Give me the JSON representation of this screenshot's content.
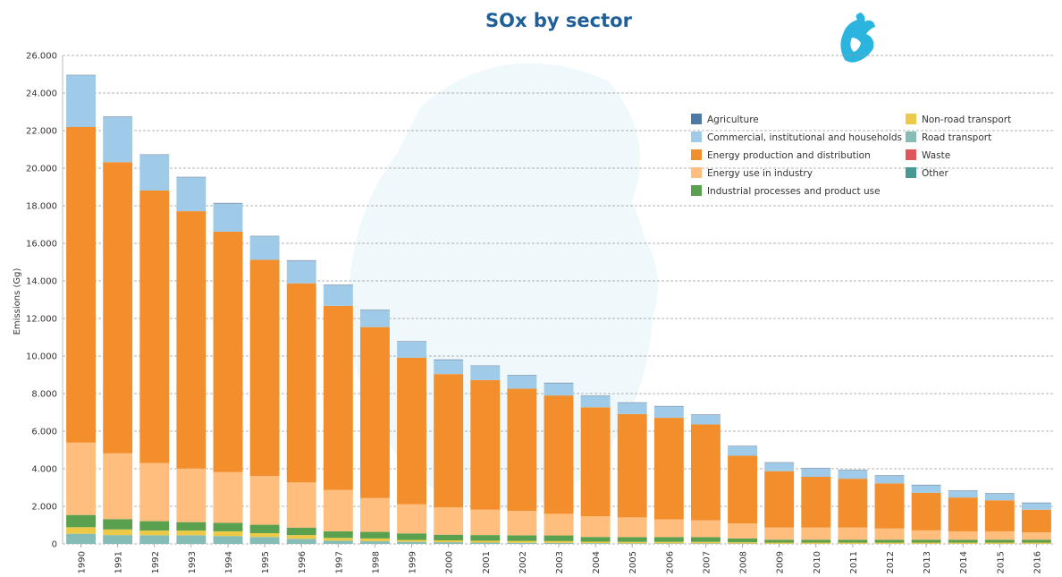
{
  "chart_data": {
    "type": "bar",
    "stacked": true,
    "title": "SOx by sector",
    "ylabel": "Emissions (Gg)",
    "xlabel": "",
    "ylim": [
      0,
      26000
    ],
    "yticks": [
      0,
      2000,
      4000,
      6000,
      8000,
      10000,
      12000,
      14000,
      16000,
      18000,
      20000,
      22000,
      24000,
      26000
    ],
    "ytick_labels": [
      "0",
      "2.000",
      "4.000",
      "6.000",
      "8.000",
      "10.000",
      "12.000",
      "14.000",
      "16.000",
      "18.000",
      "20.000",
      "22.000",
      "24.000",
      "26.000"
    ],
    "grid": "horizontal-dashed",
    "legend_position": "top-right",
    "categories": [
      "1990",
      "1991",
      "1992",
      "1993",
      "1994",
      "1995",
      "1996",
      "1997",
      "1998",
      "1999",
      "2000",
      "2001",
      "2002",
      "2003",
      "2004",
      "2005",
      "2006",
      "2007",
      "2008",
      "2009",
      "2010",
      "2011",
      "2012",
      "2013",
      "2014",
      "2015",
      "2016"
    ],
    "series": [
      {
        "name": "Agriculture",
        "color": "#4e79a7",
        "values": [
          20,
          20,
          20,
          20,
          20,
          20,
          20,
          20,
          20,
          20,
          20,
          20,
          20,
          20,
          20,
          20,
          20,
          20,
          20,
          20,
          20,
          20,
          20,
          20,
          20,
          20,
          20
        ]
      },
      {
        "name": "Commercial, institutional and households",
        "color": "#a0cbe8",
        "values": [
          2750,
          2400,
          1900,
          1800,
          1500,
          1250,
          1200,
          1100,
          900,
          850,
          750,
          750,
          700,
          650,
          600,
          600,
          600,
          500,
          500,
          450,
          450,
          450,
          400,
          400,
          350,
          350,
          350
        ]
      },
      {
        "name": "Energy production and distribution",
        "color": "#f28e2b",
        "values": [
          16800,
          15500,
          14500,
          13700,
          12800,
          11500,
          10600,
          9800,
          9100,
          7800,
          7100,
          6900,
          6500,
          6300,
          5800,
          5500,
          5400,
          5100,
          3600,
          3000,
          2700,
          2600,
          2400,
          2000,
          1800,
          1650,
          1200
        ]
      },
      {
        "name": "Energy use in industry",
        "color": "#ffbe7d",
        "values": [
          3850,
          3500,
          3100,
          2850,
          2700,
          2600,
          2400,
          2200,
          1800,
          1550,
          1450,
          1350,
          1300,
          1150,
          1100,
          1050,
          950,
          900,
          800,
          650,
          650,
          650,
          600,
          500,
          450,
          450,
          400
        ]
      },
      {
        "name": "Industrial processes and product use",
        "color": "#59a14f",
        "values": [
          650,
          550,
          500,
          450,
          450,
          450,
          400,
          350,
          350,
          350,
          300,
          300,
          300,
          300,
          250,
          250,
          250,
          250,
          200,
          150,
          150,
          150,
          150,
          150,
          150,
          150,
          150
        ]
      },
      {
        "name": "Non-road transport",
        "color": "#edc948",
        "values": [
          350,
          300,
          250,
          250,
          250,
          200,
          200,
          150,
          150,
          100,
          100,
          100,
          100,
          100,
          80,
          80,
          80,
          80,
          70,
          60,
          60,
          60,
          60,
          60,
          60,
          60,
          60
        ]
      },
      {
        "name": "Road transport",
        "color": "#86bcb6",
        "values": [
          540,
          470,
          460,
          460,
          420,
          370,
          270,
          170,
          140,
          110,
          90,
          70,
          60,
          50,
          40,
          30,
          30,
          30,
          20,
          10,
          10,
          10,
          10,
          10,
          10,
          10,
          10
        ]
      },
      {
        "name": "Waste",
        "color": "#e15759",
        "values": [
          5,
          5,
          5,
          5,
          5,
          5,
          5,
          5,
          5,
          5,
          5,
          5,
          5,
          5,
          5,
          5,
          5,
          5,
          5,
          5,
          5,
          5,
          5,
          5,
          5,
          5,
          5
        ]
      },
      {
        "name": "Other",
        "color": "#499894",
        "values": [
          5,
          5,
          5,
          5,
          5,
          5,
          5,
          5,
          5,
          5,
          5,
          5,
          5,
          5,
          5,
          5,
          5,
          5,
          5,
          5,
          5,
          5,
          5,
          5,
          5,
          5,
          5
        ]
      }
    ],
    "stack_order": [
      "Road transport",
      "Non-road transport",
      "Industrial processes and product use",
      "Energy use in industry",
      "Energy production and distribution",
      "Commercial, institutional and households",
      "Agriculture",
      "Waste",
      "Other"
    ]
  },
  "logo": {
    "name": "griffin-logo",
    "color": "#2bb5de"
  }
}
